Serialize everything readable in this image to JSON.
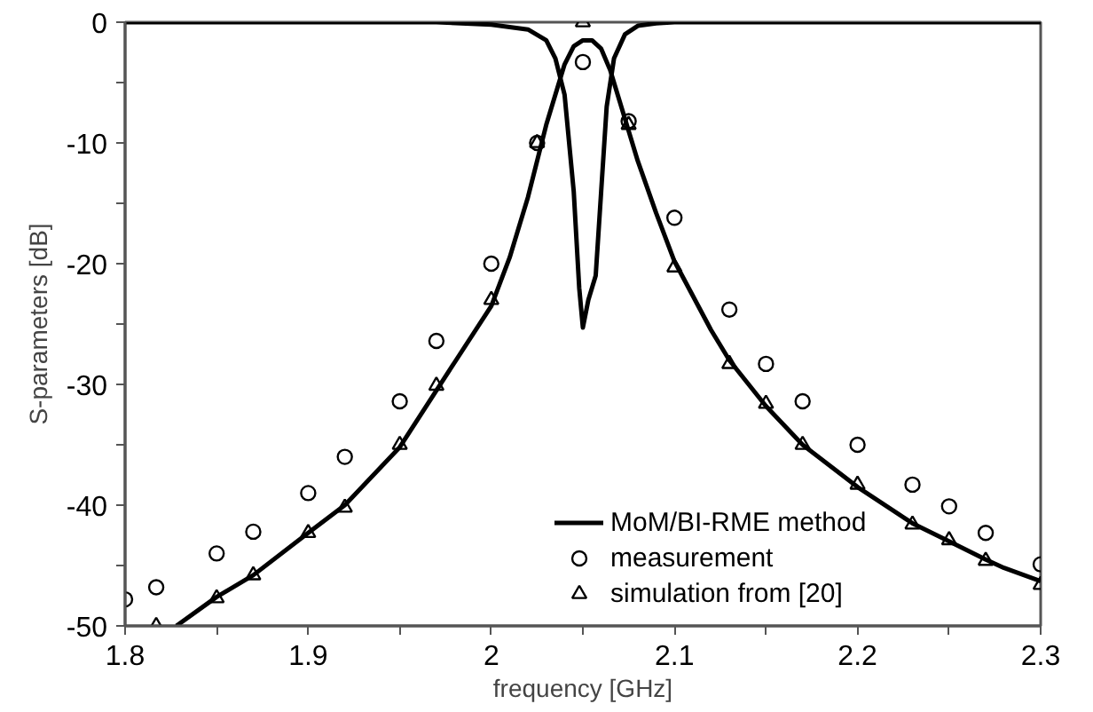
{
  "chart_data": {
    "type": "line",
    "xlabel": "frequency [GHz]",
    "ylabel": "S-parameters [dB]",
    "xlim": [
      1.8,
      2.3
    ],
    "xticks": [
      1.8,
      1.9,
      {
        "value": 2.0,
        "label": "2"
      },
      2.1,
      2.2,
      2.3
    ],
    "ylim": [
      -50,
      0
    ],
    "yticks": [
      -50,
      -40,
      -30,
      -20,
      -10,
      0
    ],
    "grid": false,
    "legend": "bottom right",
    "series": [
      {
        "name": "MoM/BI-RME method",
        "color": "#000000",
        "line_style": "solid",
        "x": [
          1.828,
          1.85,
          1.87,
          1.9,
          1.92,
          1.95,
          1.97,
          2.0,
          2.01,
          2.02,
          2.03,
          2.04,
          2.045,
          2.05,
          2.055,
          2.06,
          2.065,
          2.07,
          2.075,
          2.08,
          2.09,
          2.1,
          2.12,
          2.13,
          2.15,
          2.17,
          2.2,
          2.23,
          2.25,
          2.27,
          2.28,
          2.3
        ],
        "values": [
          -50,
          -47.6,
          -45.8,
          -42.3,
          -40,
          -35.2,
          -30.5,
          -23.5,
          -19.5,
          -14.5,
          -8.5,
          -3.5,
          -2,
          -1.5,
          -1.5,
          -2.2,
          -4,
          -6.5,
          -9,
          -11.5,
          -15.8,
          -19.8,
          -25.5,
          -28,
          -31.8,
          -35,
          -38.5,
          -41.5,
          -43,
          -44.5,
          -45.2,
          -46.3
        ]
      },
      {
        "color": "#000000",
        "line_style": "solid",
        "x": [
          1.8,
          1.97,
          2.0,
          2.02,
          2.03,
          2.035,
          2.04,
          2.045,
          2.048,
          2.05,
          2.053,
          2.057,
          2.06,
          2.063,
          2.067,
          2.073,
          2.08,
          2.09,
          2.1,
          2.3
        ],
        "values": [
          0,
          0,
          -0.2,
          -0.6,
          -1.5,
          -3,
          -6,
          -14,
          -22,
          -25.3,
          -23,
          -21,
          -14,
          -7,
          -3,
          -1,
          -0.3,
          -0.1,
          0,
          0
        ]
      },
      {
        "name": "measurement",
        "type": "scatter",
        "marker": "circle",
        "color": "#000000",
        "x": [
          1.8,
          1.817,
          1.85,
          1.87,
          1.9,
          1.92,
          1.95,
          1.97,
          2.0,
          2.025,
          2.05,
          2.075,
          2.1,
          2.13,
          2.15,
          2.17,
          2.2,
          2.23,
          2.25,
          2.27,
          2.3
        ],
        "values": [
          -47.8,
          -46.8,
          -44,
          -42.2,
          -39,
          -36,
          -31.4,
          -26.4,
          -20,
          -10,
          -3.3,
          -8.2,
          -16.2,
          -23.8,
          -28.3,
          -31.4,
          -35,
          -38.3,
          -40.1,
          -42.3,
          -44.9
        ]
      },
      {
        "name": "simulation from [20]",
        "type": "scatter",
        "marker": "triangle",
        "color": "#000000",
        "x": [
          1.817,
          1.85,
          1.87,
          1.9,
          1.92,
          1.95,
          1.97,
          2.0,
          2.025,
          2.05,
          2.075,
          2.1,
          2.13,
          2.15,
          2.17,
          2.2,
          2.23,
          2.25,
          2.27,
          2.3
        ],
        "values": [
          -50,
          -47.7,
          -45.8,
          -42.3,
          -40.2,
          -35,
          -30.1,
          -23,
          -10,
          0,
          -8.5,
          -20.3,
          -28.3,
          -31.6,
          -35,
          -38.3,
          -41.6,
          -42.9,
          -44.6,
          -46.6
        ]
      }
    ]
  }
}
